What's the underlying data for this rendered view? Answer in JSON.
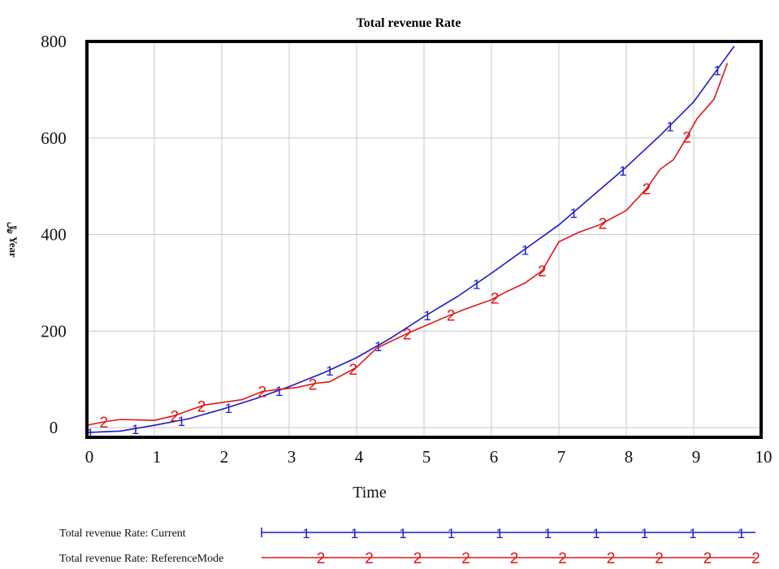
{
  "chart_data": {
    "type": "line",
    "title": "Total revenue Rate",
    "xlabel": "Time",
    "ylabel": "﷼ Year",
    "xlim": [
      0,
      10
    ],
    "ylim": [
      -20,
      800
    ],
    "x_ticks": [
      "0",
      "1",
      "2",
      "3",
      "4",
      "5",
      "6",
      "7",
      "8",
      "9",
      "10"
    ],
    "y_ticks": [
      "0",
      "200",
      "400",
      "600",
      "800"
    ],
    "grid": true,
    "legend_position": "bottom",
    "series": [
      {
        "name": "Total revenue Rate: Current",
        "marker": "1",
        "color": "#1a1acc",
        "x": [
          0,
          0.5,
          1,
          1.5,
          2,
          2.5,
          3,
          3.5,
          4,
          4.5,
          5,
          5.5,
          6,
          6.5,
          7,
          7.5,
          8,
          8.5,
          9,
          9.6
        ],
        "y": [
          -10,
          -7,
          5,
          18,
          38,
          60,
          85,
          113,
          145,
          185,
          230,
          272,
          320,
          370,
          420,
          480,
          540,
          605,
          675,
          790
        ],
        "marker_x": [
          0.05,
          0.72,
          1.4,
          2.1,
          2.85,
          3.6,
          4.32,
          5.05,
          5.78,
          6.5,
          7.22,
          7.95,
          8.65,
          9.35
        ]
      },
      {
        "name": "Total revenue Rate: ReferenceMode",
        "marker": "2",
        "color": "#e01515",
        "x": [
          0,
          0.25,
          0.5,
          1,
          1.3,
          1.6,
          1.75,
          2,
          2.3,
          2.6,
          2.9,
          3.1,
          3.4,
          3.6,
          3.8,
          4,
          4.3,
          4.6,
          4.8,
          5,
          5.3,
          5.6,
          6,
          6.2,
          6.5,
          6.75,
          7,
          7.3,
          7.6,
          8,
          8.3,
          8.5,
          8.6,
          8.7,
          8.85,
          9.05,
          9.3,
          9.5
        ],
        "y": [
          5,
          12,
          17,
          15,
          25,
          40,
          47,
          52,
          58,
          75,
          80,
          83,
          92,
          95,
          110,
          125,
          165,
          185,
          198,
          210,
          228,
          245,
          265,
          280,
          300,
          325,
          385,
          405,
          420,
          450,
          495,
          535,
          545,
          555,
          590,
          640,
          680,
          755
        ],
        "marker_x": [
          0.25,
          1.3,
          1.7,
          2.6,
          3.35,
          3.95,
          4.75,
          5.4,
          6.05,
          6.75,
          7.65,
          8.3,
          8.9
        ]
      }
    ]
  }
}
